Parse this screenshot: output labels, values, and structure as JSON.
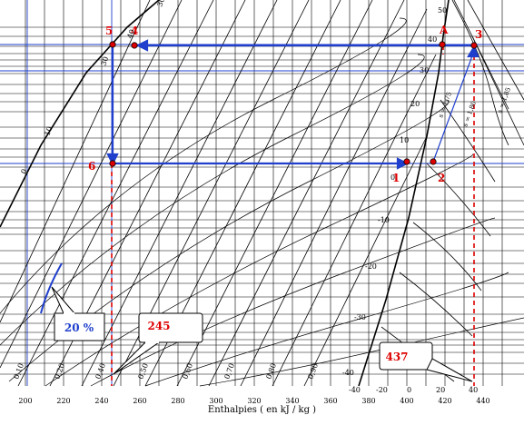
{
  "x_axis": {
    "title": "Enthalpies ( en kJ / kg )",
    "ticks": [
      "200",
      "220",
      "240",
      "260",
      "280",
      "300",
      "320",
      "340",
      "360",
      "380",
      "400",
      "420",
      "440"
    ]
  },
  "x_axis_left_ticks": [
    "-40",
    "-20",
    "0",
    "20",
    "40"
  ],
  "temperature_labels_left": [
    "0",
    "10",
    "30",
    "40",
    "30"
  ],
  "temperature_labels_right": [
    "50",
    "40",
    "30",
    "20",
    "10",
    "0",
    "-10",
    "-20",
    "-30",
    "-40"
  ],
  "quality_labels": [
    "0,10",
    "0,20",
    "0,30",
    "0,40",
    "0,50",
    "0,60",
    "0,70",
    "0,80",
    "0,90"
  ],
  "entropy_labels": [
    "s = 1,75",
    "s = 1,80",
    "s = 1,85"
  ],
  "points": [
    {
      "id": "1",
      "label": "1"
    },
    {
      "id": "2",
      "label": "2"
    },
    {
      "id": "3",
      "label": "3"
    },
    {
      "id": "4",
      "label": "4"
    },
    {
      "id": "5",
      "label": "5"
    },
    {
      "id": "6",
      "label": "6"
    },
    {
      "id": "A",
      "label": "A"
    }
  ],
  "callouts": {
    "quality": "20 %",
    "enthalpy_low": "245",
    "enthalpy_high": "437"
  },
  "colors": {
    "cycle": "#1f3fcc",
    "points": "#dd0000",
    "labels": "#dd0000",
    "dashed": "#dd0000",
    "grid": "#000000"
  }
}
